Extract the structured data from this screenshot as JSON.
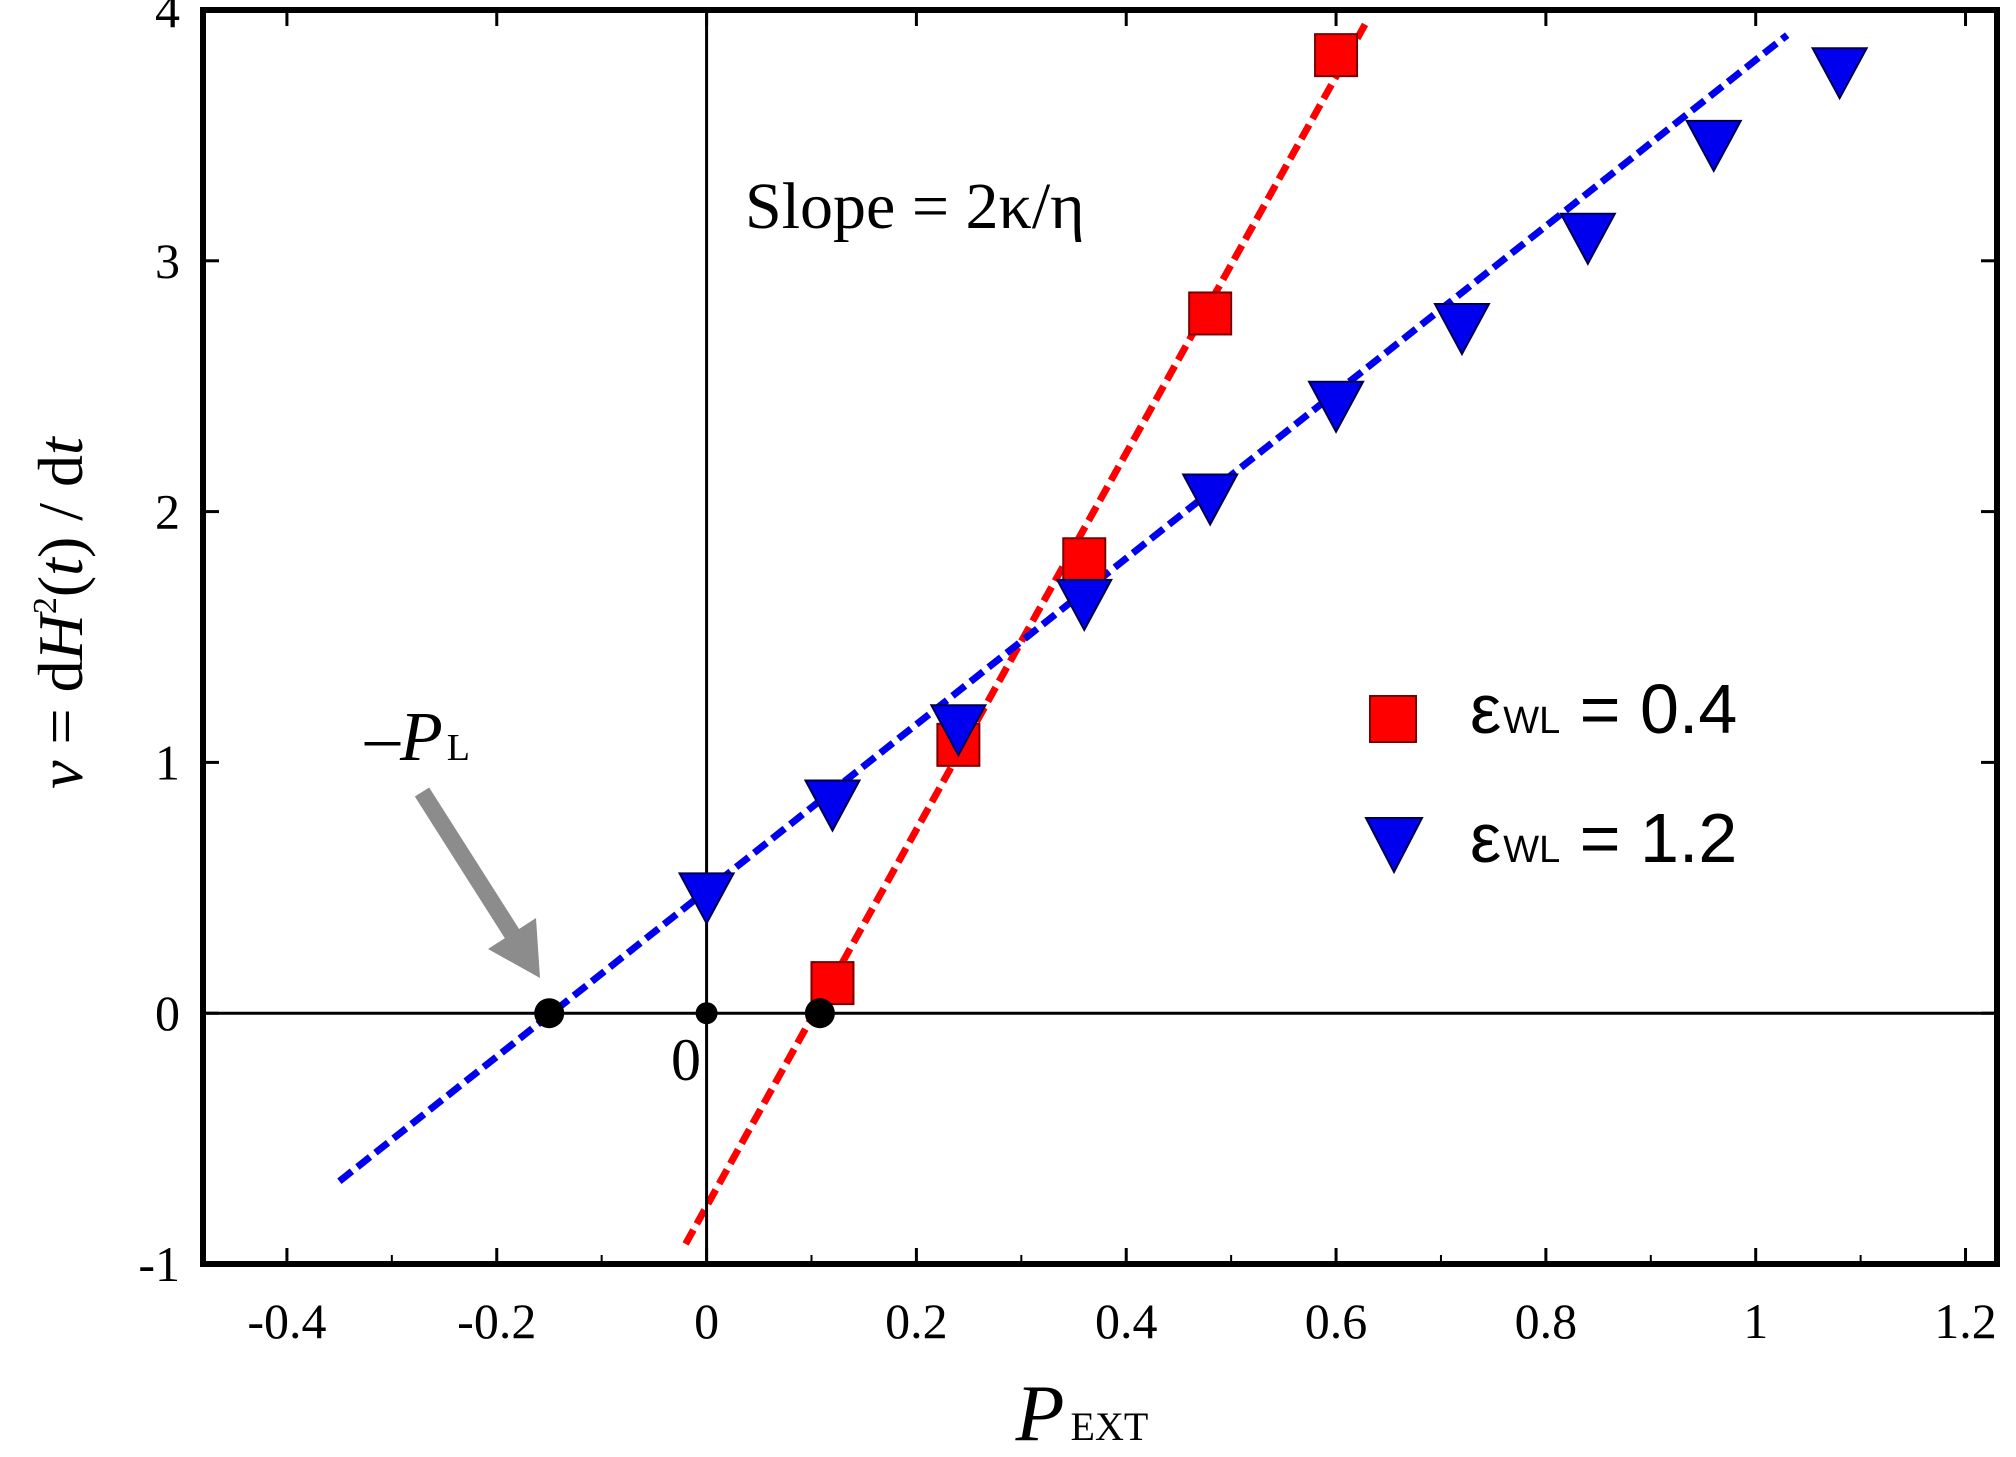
{
  "chart_data": {
    "type": "scatter",
    "title": "",
    "xlabel": {
      "main": "P",
      "sub": "EXT"
    },
    "ylabel": {
      "v": "v",
      "eq": " = d",
      "H": "H",
      "sup": "2",
      "lp": "(",
      "t1": "t",
      "rp": ")",
      "slash": " / d",
      "t2": "t"
    },
    "xlim": [
      -0.48,
      1.23
    ],
    "ylim": [
      -1,
      4
    ],
    "xticks": [
      -0.4,
      -0.2,
      0,
      0.2,
      0.4,
      0.6,
      0.8,
      1,
      1.2
    ],
    "xtick_labels": [
      "-0.4",
      "-0.2",
      "0",
      "0.2",
      "0.4",
      "0.6",
      "0.8",
      "1",
      "1.2"
    ],
    "yticks": [
      -1,
      0,
      1,
      2,
      3,
      4
    ],
    "ytick_labels": [
      "-1",
      "0",
      "1",
      "2",
      "3",
      "4"
    ],
    "grid": false,
    "legend_position": "right",
    "series": [
      {
        "name": {
          "greek": "ε",
          "sub": "WL",
          "rest": " = 0.4"
        },
        "marker": "square",
        "color": "#ff0000",
        "points": [
          [
            0.12,
            0.12
          ],
          [
            0.24,
            1.07
          ],
          [
            0.36,
            1.81
          ],
          [
            0.48,
            2.79
          ],
          [
            0.6,
            3.82
          ]
        ]
      },
      {
        "name": {
          "greek": "ε",
          "sub": "WL",
          "rest": " = 1.2"
        },
        "marker": "triangle-down",
        "color": "#0000ee",
        "points": [
          [
            0,
            0.47
          ],
          [
            0.12,
            0.84
          ],
          [
            0.24,
            1.14
          ],
          [
            0.36,
            1.64
          ],
          [
            0.48,
            2.06
          ],
          [
            0.6,
            2.43
          ],
          [
            0.72,
            2.74
          ],
          [
            0.84,
            3.1
          ],
          [
            0.96,
            3.47
          ],
          [
            1.08,
            3.76
          ]
        ]
      }
    ],
    "fit_lines": [
      {
        "color": "#ff0000",
        "x": [
          -0.02,
          0.63
        ],
        "y": [
          -0.92,
          3.96
        ]
      },
      {
        "color": "#0000ee",
        "x": [
          -0.35,
          1.03
        ],
        "y": [
          -0.67,
          3.9
        ]
      }
    ],
    "intercept_points": [
      [
        -0.15,
        0
      ],
      [
        0,
        0
      ],
      [
        0.108,
        0
      ]
    ],
    "annotations": {
      "slope": "Slope = 2κ/η",
      "origin": "0",
      "pl": {
        "minus": "–",
        "main": "P",
        "sub": "L"
      }
    }
  }
}
